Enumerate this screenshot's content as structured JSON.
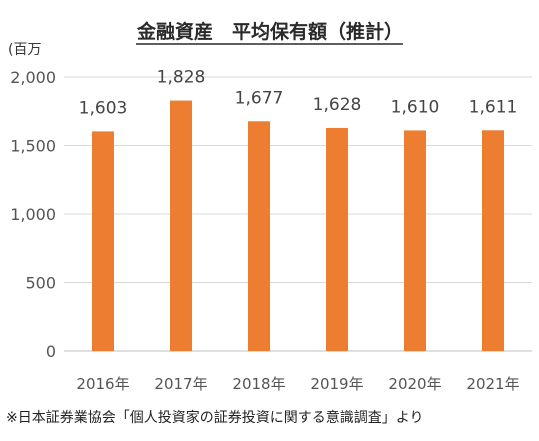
{
  "chart_data": {
    "type": "bar",
    "title": "金融資産　平均保有額（推計）",
    "ylabel": "(百万",
    "categories": [
      "2016年",
      "2017年",
      "2018年",
      "2019年",
      "2020年",
      "2021年"
    ],
    "values": [
      1603,
      1828,
      1677,
      1628,
      1610,
      1611
    ],
    "value_labels": [
      "1,603",
      "1,828",
      "1,677",
      "1,628",
      "1,610",
      "1,611"
    ],
    "yticks": [
      0,
      500,
      1000,
      1500,
      2000
    ],
    "ytick_labels": [
      "0",
      "500",
      "1,000",
      "1,500",
      "2,000"
    ],
    "ylim": [
      0,
      2000
    ],
    "grid": true,
    "bar_color": "#ED7D31",
    "note": "※日本証券業協会「個人投資家の証券投資に関する意識調査」より"
  }
}
